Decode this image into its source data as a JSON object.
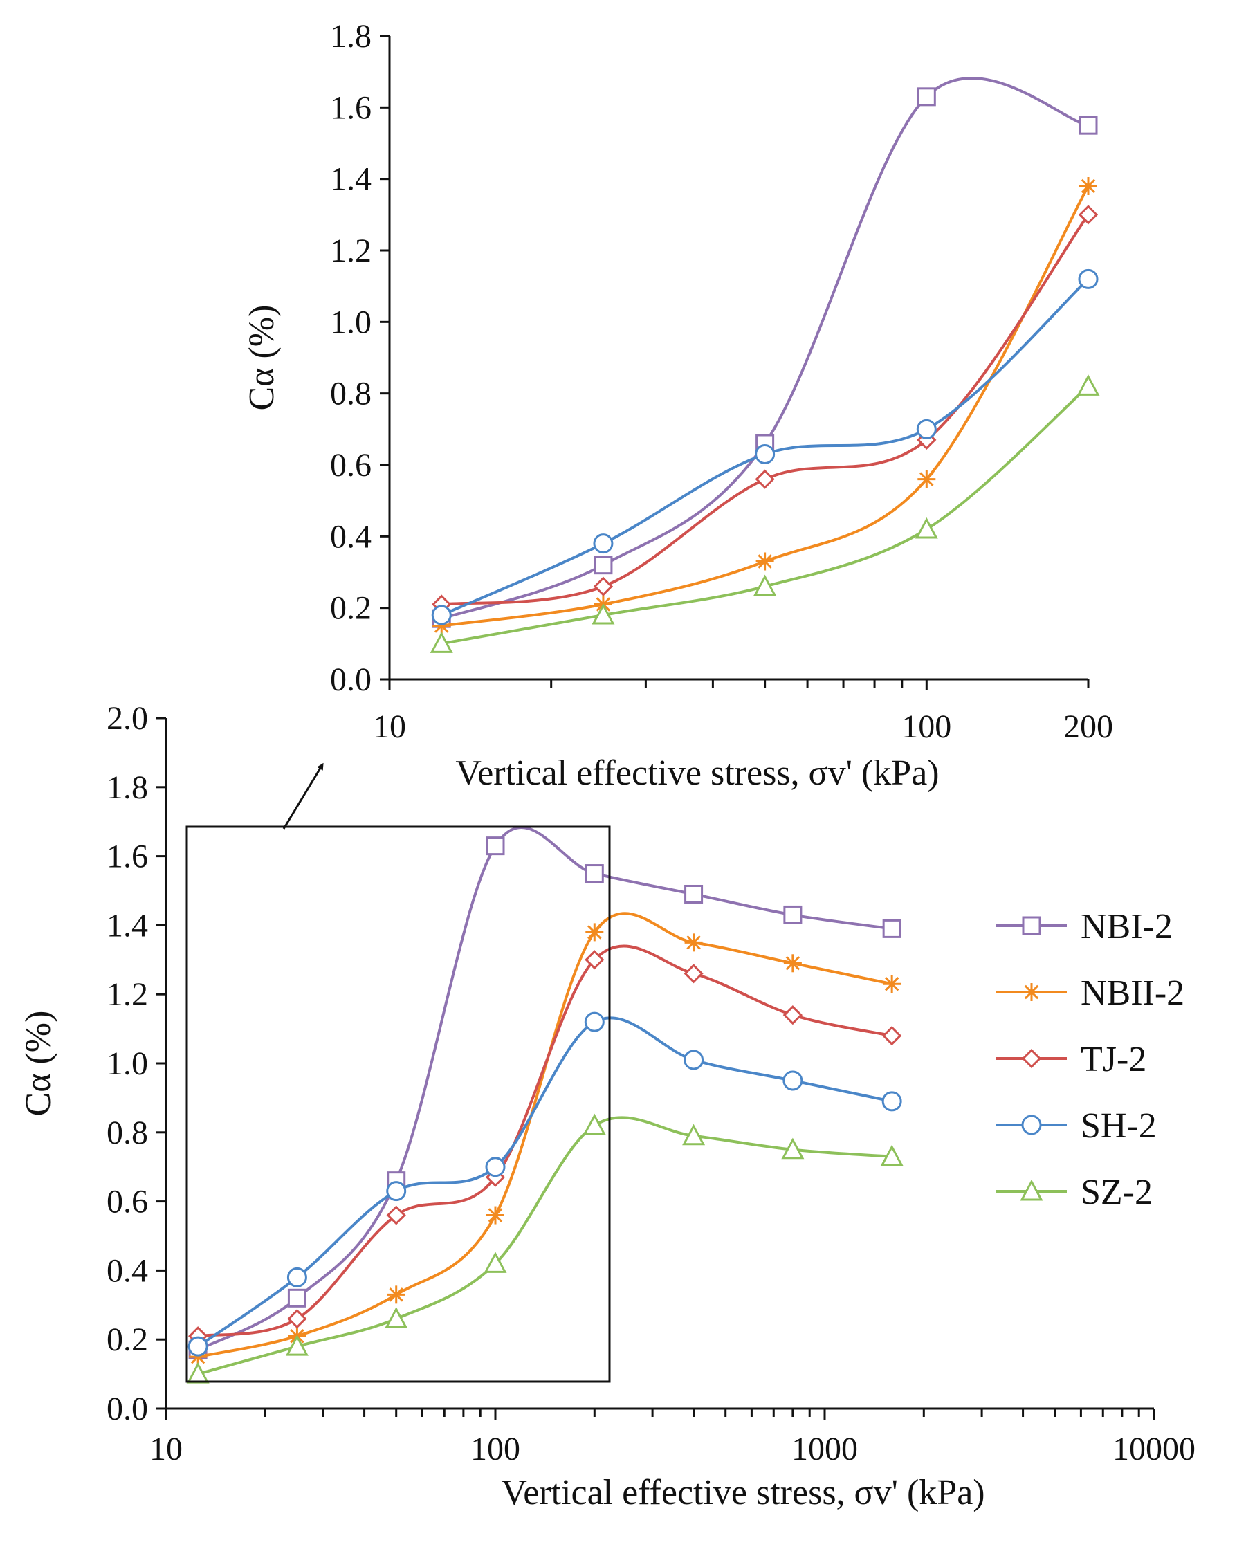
{
  "chart_data": [
    {
      "id": "main",
      "type": "line",
      "title": "",
      "xlabel": "Vertical effective stress, σv' (kPa)",
      "ylabel": "Cα (%)",
      "xscale": "log",
      "xlim": [
        10,
        10000
      ],
      "ylim": [
        0,
        2.0
      ],
      "yticks": [
        "0.0",
        "0.2",
        "0.4",
        "0.6",
        "0.8",
        "1.0",
        "1.2",
        "1.4",
        "1.6",
        "1.8",
        "2.0"
      ],
      "xticks": [
        "10",
        "100",
        "1000",
        "10000"
      ],
      "legend": "right",
      "x": [
        12.5,
        25,
        50,
        100,
        200,
        400,
        800,
        1600
      ],
      "series": [
        {
          "name": "NBI-2",
          "color": "#8e72b0",
          "marker": "square",
          "values": [
            0.17,
            0.32,
            0.66,
            1.63,
            1.55,
            1.49,
            1.43,
            1.39
          ]
        },
        {
          "name": "NBII-2",
          "color": "#f28a1f",
          "marker": "asterisk",
          "values": [
            0.15,
            0.21,
            0.33,
            0.56,
            1.38,
            1.35,
            1.29,
            1.23
          ]
        },
        {
          "name": "TJ-2",
          "color": "#d0504d",
          "marker": "diamond",
          "values": [
            0.21,
            0.26,
            0.56,
            0.67,
            1.3,
            1.26,
            1.14,
            1.08
          ]
        },
        {
          "name": "SH-2",
          "color": "#4a86c8",
          "marker": "circle",
          "values": [
            0.18,
            0.38,
            0.63,
            0.7,
            1.12,
            1.01,
            0.95,
            0.89
          ]
        },
        {
          "name": "SZ-2",
          "color": "#8dc05a",
          "marker": "triangle",
          "values": [
            0.1,
            0.18,
            0.26,
            0.42,
            0.82,
            0.79,
            0.75,
            0.73
          ]
        }
      ]
    },
    {
      "id": "inset",
      "type": "line",
      "title": "",
      "xlabel": "Vertical effective stress, σv' (kPa)",
      "ylabel": "Cα (%)",
      "xscale": "log",
      "xlim": [
        10,
        200
      ],
      "ylim": [
        0,
        1.8
      ],
      "yticks": [
        "0.0",
        "0.2",
        "0.4",
        "0.6",
        "0.8",
        "1.0",
        "1.2",
        "1.4",
        "1.6",
        "1.8"
      ],
      "xticks": [
        "10",
        "100",
        "200"
      ],
      "x": [
        12.5,
        25,
        50,
        100,
        200
      ],
      "series": [
        {
          "name": "NBI-2",
          "values": [
            0.17,
            0.32,
            0.66,
            1.63,
            1.55
          ]
        },
        {
          "name": "NBII-2",
          "values": [
            0.15,
            0.21,
            0.33,
            0.56,
            1.38
          ]
        },
        {
          "name": "TJ-2",
          "values": [
            0.21,
            0.26,
            0.56,
            0.67,
            1.3
          ]
        },
        {
          "name": "SH-2",
          "values": [
            0.18,
            0.38,
            0.63,
            0.7,
            1.12
          ]
        },
        {
          "name": "SZ-2",
          "values": [
            0.1,
            0.18,
            0.26,
            0.42,
            0.82
          ]
        }
      ]
    }
  ]
}
